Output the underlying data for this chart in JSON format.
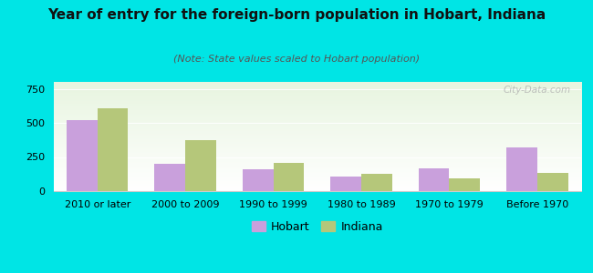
{
  "title": "Year of entry for the foreign-born population in Hobart, Indiana",
  "subtitle": "(Note: State values scaled to Hobart population)",
  "categories": [
    "2010 or later",
    "2000 to 2009",
    "1990 to 1999",
    "1980 to 1989",
    "1970 to 1979",
    "Before 1970"
  ],
  "hobart_values": [
    520,
    200,
    160,
    105,
    170,
    320
  ],
  "indiana_values": [
    610,
    375,
    205,
    130,
    95,
    135
  ],
  "hobart_color": "#c9a0dc",
  "indiana_color": "#b5c77a",
  "ylim": [
    0,
    800
  ],
  "yticks": [
    0,
    250,
    500,
    750
  ],
  "background_color": "#00e5e5",
  "bar_width": 0.35,
  "title_fontsize": 11,
  "subtitle_fontsize": 8,
  "tick_fontsize": 8,
  "legend_fontsize": 9,
  "watermark": "City-Data.com"
}
